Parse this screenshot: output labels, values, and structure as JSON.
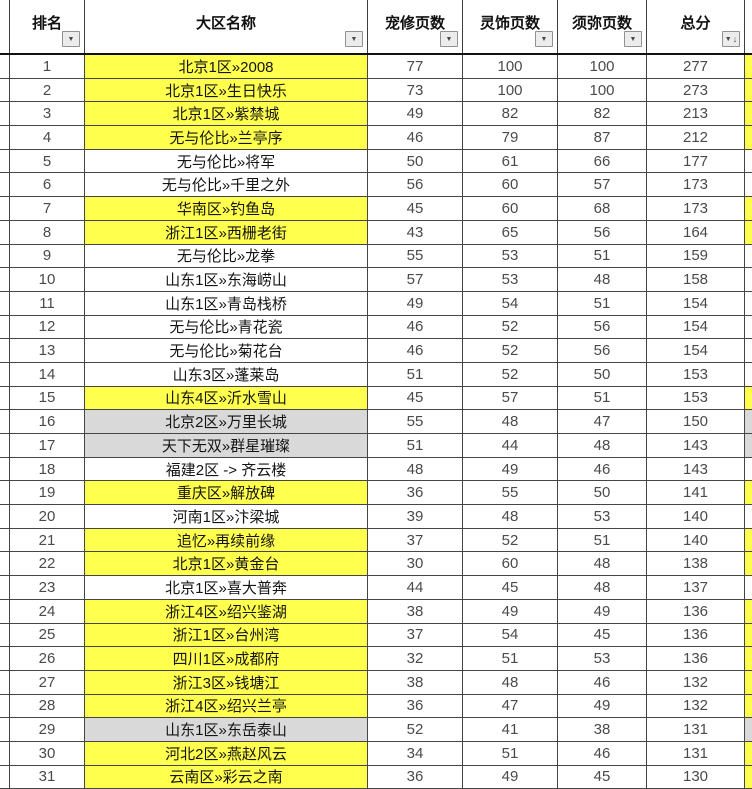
{
  "colors": {
    "yellow": "#ffff4d",
    "gray": "#d9d9d9",
    "white": "#ffffff"
  },
  "icons": {
    "filter_dropdown": "▼",
    "sort_descending": "↓"
  },
  "table": {
    "headers": [
      {
        "label": "排名"
      },
      {
        "label": "大区名称"
      },
      {
        "label": "宠修页数"
      },
      {
        "label": "灵饰页数"
      },
      {
        "label": "须弥页数"
      },
      {
        "label": "总分",
        "sorted": "descending"
      }
    ],
    "rows": [
      {
        "rank": 1,
        "name": "北京1区»2008",
        "pet": 77,
        "lingshi": 100,
        "xumi": 100,
        "total": 277,
        "highlight": "yellow"
      },
      {
        "rank": 2,
        "name": "北京1区»生日快乐",
        "pet": 73,
        "lingshi": 100,
        "xumi": 100,
        "total": 273,
        "highlight": "yellow"
      },
      {
        "rank": 3,
        "name": "北京1区»紫禁城",
        "pet": 49,
        "lingshi": 82,
        "xumi": 82,
        "total": 213,
        "highlight": "yellow"
      },
      {
        "rank": 4,
        "name": "无与伦比»兰亭序",
        "pet": 46,
        "lingshi": 79,
        "xumi": 87,
        "total": 212,
        "highlight": "yellow"
      },
      {
        "rank": 5,
        "name": "无与伦比»将军",
        "pet": 50,
        "lingshi": 61,
        "xumi": 66,
        "total": 177,
        "highlight": "white"
      },
      {
        "rank": 6,
        "name": "无与伦比»千里之外",
        "pet": 56,
        "lingshi": 60,
        "xumi": 57,
        "total": 173,
        "highlight": "white"
      },
      {
        "rank": 7,
        "name": "华南区»钓鱼岛",
        "pet": 45,
        "lingshi": 60,
        "xumi": 68,
        "total": 173,
        "highlight": "yellow"
      },
      {
        "rank": 8,
        "name": "浙江1区»西栅老街",
        "pet": 43,
        "lingshi": 65,
        "xumi": 56,
        "total": 164,
        "highlight": "yellow"
      },
      {
        "rank": 9,
        "name": "无与伦比»龙拳",
        "pet": 55,
        "lingshi": 53,
        "xumi": 51,
        "total": 159,
        "highlight": "white"
      },
      {
        "rank": 10,
        "name": "山东1区»东海崂山",
        "pet": 57,
        "lingshi": 53,
        "xumi": 48,
        "total": 158,
        "highlight": "white"
      },
      {
        "rank": 11,
        "name": "山东1区»青岛栈桥",
        "pet": 49,
        "lingshi": 54,
        "xumi": 51,
        "total": 154,
        "highlight": "white"
      },
      {
        "rank": 12,
        "name": "无与伦比»青花瓷",
        "pet": 46,
        "lingshi": 52,
        "xumi": 56,
        "total": 154,
        "highlight": "white"
      },
      {
        "rank": 13,
        "name": "无与伦比»菊花台",
        "pet": 46,
        "lingshi": 52,
        "xumi": 56,
        "total": 154,
        "highlight": "white"
      },
      {
        "rank": 14,
        "name": "山东3区»蓬莱岛",
        "pet": 51,
        "lingshi": 52,
        "xumi": 50,
        "total": 153,
        "highlight": "white"
      },
      {
        "rank": 15,
        "name": "山东4区»沂水雪山",
        "pet": 45,
        "lingshi": 57,
        "xumi": 51,
        "total": 153,
        "highlight": "yellow"
      },
      {
        "rank": 16,
        "name": "北京2区»万里长城",
        "pet": 55,
        "lingshi": 48,
        "xumi": 47,
        "total": 150,
        "highlight": "gray"
      },
      {
        "rank": 17,
        "name": "天下无双»群星璀璨",
        "pet": 51,
        "lingshi": 44,
        "xumi": 48,
        "total": 143,
        "highlight": "gray"
      },
      {
        "rank": 18,
        "name": "福建2区 -> 齐云楼",
        "pet": 48,
        "lingshi": 49,
        "xumi": 46,
        "total": 143,
        "highlight": "white"
      },
      {
        "rank": 19,
        "name": "重庆区»解放碑",
        "pet": 36,
        "lingshi": 55,
        "xumi": 50,
        "total": 141,
        "highlight": "yellow"
      },
      {
        "rank": 20,
        "name": "河南1区»汴梁城",
        "pet": 39,
        "lingshi": 48,
        "xumi": 53,
        "total": 140,
        "highlight": "white"
      },
      {
        "rank": 21,
        "name": "追忆»再续前缘",
        "pet": 37,
        "lingshi": 52,
        "xumi": 51,
        "total": 140,
        "highlight": "yellow"
      },
      {
        "rank": 22,
        "name": "北京1区»黄金台",
        "pet": 30,
        "lingshi": 60,
        "xumi": 48,
        "total": 138,
        "highlight": "yellow"
      },
      {
        "rank": 23,
        "name": "北京1区»喜大普奔",
        "pet": 44,
        "lingshi": 45,
        "xumi": 48,
        "total": 137,
        "highlight": "white"
      },
      {
        "rank": 24,
        "name": "浙江4区»绍兴鉴湖",
        "pet": 38,
        "lingshi": 49,
        "xumi": 49,
        "total": 136,
        "highlight": "yellow"
      },
      {
        "rank": 25,
        "name": "浙江1区»台州湾",
        "pet": 37,
        "lingshi": 54,
        "xumi": 45,
        "total": 136,
        "highlight": "yellow"
      },
      {
        "rank": 26,
        "name": "四川1区»成都府",
        "pet": 32,
        "lingshi": 51,
        "xumi": 53,
        "total": 136,
        "highlight": "yellow"
      },
      {
        "rank": 27,
        "name": "浙江3区»钱塘江",
        "pet": 38,
        "lingshi": 48,
        "xumi": 46,
        "total": 132,
        "highlight": "yellow"
      },
      {
        "rank": 28,
        "name": "浙江4区»绍兴兰亭",
        "pet": 36,
        "lingshi": 47,
        "xumi": 49,
        "total": 132,
        "highlight": "yellow"
      },
      {
        "rank": 29,
        "name": "山东1区»东岳泰山",
        "pet": 52,
        "lingshi": 41,
        "xumi": 38,
        "total": 131,
        "highlight": "gray"
      },
      {
        "rank": 30,
        "name": "河北2区»燕赵风云",
        "pet": 34,
        "lingshi": 51,
        "xumi": 46,
        "total": 131,
        "highlight": "yellow"
      },
      {
        "rank": 31,
        "name": "云南区»彩云之南",
        "pet": 36,
        "lingshi": 49,
        "xumi": 45,
        "total": 130,
        "highlight": "yellow"
      }
    ]
  }
}
